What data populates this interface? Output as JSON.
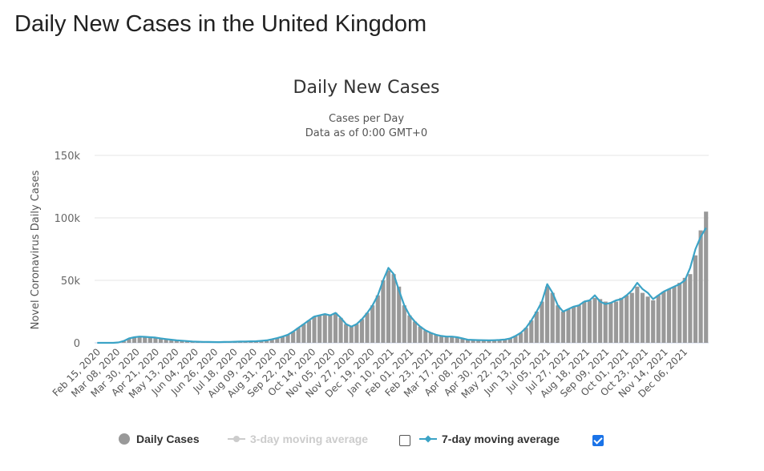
{
  "page": {
    "title": "Daily New Cases in the United Kingdom"
  },
  "legend": {
    "daily_label": "Daily Cases",
    "ma3_label": "3-day moving average",
    "ma7_label": "7-day moving average",
    "ma3_checked": false,
    "ma7_checked": true
  },
  "colors": {
    "bars": "#999999",
    "ma7": "#3ba3c6",
    "ma3": "#cccccc",
    "grid": "#e6e6e6"
  },
  "chart_data": {
    "type": "bar",
    "title": "Daily New Cases",
    "subtitle_line1": "Cases per Day",
    "subtitle_line2": "Data as of 0:00 GMT+0",
    "ylabel": "Novel Coronavirus Daily Cases",
    "xlabel": "",
    "ylim": [
      0,
      150000
    ],
    "yticks": [
      0,
      50000,
      100000,
      150000
    ],
    "ytick_labels": [
      "0",
      "50k",
      "100k",
      "150k"
    ],
    "grid": true,
    "legend_position": "bottom",
    "x_tick_labels": [
      "Feb 15, 2020",
      "Mar 08, 2020",
      "Mar 30, 2020",
      "Apr 21, 2020",
      "May 13, 2020",
      "Jun 04, 2020",
      "Jun 26, 2020",
      "Jul 18, 2020",
      "Aug 09, 2020",
      "Aug 31, 2020",
      "Sep 22, 2020",
      "Oct 14, 2020",
      "Nov 05, 2020",
      "Nov 27, 2020",
      "Dec 19, 2020",
      "Jan 10, 2021",
      "Feb 01, 2021",
      "Feb 23, 2021",
      "Mar 17, 2021",
      "Apr 08, 2021",
      "Apr 30, 2021",
      "May 22, 2021",
      "Jun 13, 2021",
      "Jul 05, 2021",
      "Jul 27, 2021",
      "Aug 18, 2021",
      "Sep 09, 2021",
      "Oct 01, 2021",
      "Oct 23, 2021",
      "Nov 14, 2021",
      "Dec 06, 2021"
    ],
    "series": [
      {
        "name": "Daily Cases",
        "kind": "bar",
        "weekly_values": [
          0,
          0,
          0,
          0,
          300,
          1500,
          3500,
          4500,
          5000,
          4800,
          4500,
          4200,
          3500,
          3000,
          2500,
          2000,
          1700,
          1400,
          1100,
          900,
          800,
          700,
          650,
          600,
          700,
          800,
          900,
          1000,
          1100,
          1200,
          1300,
          1600,
          2000,
          2800,
          3800,
          5000,
          6500,
          9000,
          12000,
          15000,
          18000,
          21000,
          22000,
          23000,
          22000,
          24000,
          20000,
          15000,
          13000,
          15000,
          19000,
          24000,
          30000,
          38000,
          50000,
          58000,
          55000,
          45000,
          30000,
          22000,
          17000,
          13000,
          10000,
          8000,
          6500,
          5500,
          5000,
          5000,
          4500,
          3500,
          2500,
          2300,
          2200,
          2100,
          2000,
          2100,
          2300,
          2700,
          3500,
          5500,
          8000,
          12000,
          18000,
          25000,
          33000,
          45000,
          40000,
          30000,
          25000,
          27000,
          29000,
          30000,
          33000,
          34000,
          36000,
          35000,
          33000,
          32000,
          33000,
          36000,
          38000,
          40000,
          45000,
          40000,
          37000,
          34000,
          38000,
          41000,
          43000,
          45000,
          48000,
          52000,
          55000,
          70000,
          90000,
          105000
        ]
      },
      {
        "name": "7-day moving average",
        "kind": "line",
        "weekly_values": [
          0,
          0,
          0,
          0,
          300,
          1500,
          3500,
          4500,
          5000,
          4800,
          4500,
          4200,
          3500,
          3000,
          2500,
          2000,
          1700,
          1400,
          1100,
          900,
          800,
          700,
          650,
          600,
          700,
          800,
          900,
          1000,
          1100,
          1200,
          1300,
          1600,
          2000,
          2800,
          3800,
          5000,
          6500,
          9000,
          12000,
          15000,
          18000,
          21000,
          22000,
          23000,
          22000,
          24000,
          20000,
          15000,
          13000,
          15000,
          19000,
          24000,
          30000,
          38000,
          50000,
          60000,
          55000,
          42000,
          30000,
          22000,
          17000,
          13000,
          10000,
          8000,
          6500,
          5500,
          5000,
          5000,
          4500,
          3500,
          2500,
          2300,
          2200,
          2100,
          2000,
          2100,
          2300,
          2700,
          3500,
          5500,
          8000,
          12000,
          18000,
          25000,
          33000,
          47000,
          40000,
          30000,
          25000,
          27000,
          29000,
          30000,
          33000,
          34000,
          38000,
          33000,
          31000,
          32000,
          34000,
          35000,
          38000,
          42000,
          48000,
          43000,
          40000,
          35000,
          38000,
          41000,
          43000,
          45000,
          47000,
          50000,
          60000,
          75000,
          85000,
          92000
        ]
      }
    ]
  }
}
